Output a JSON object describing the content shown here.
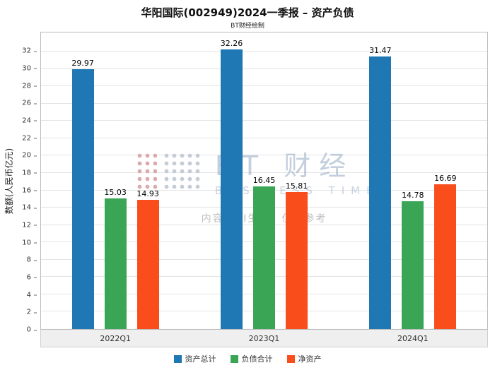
{
  "watermark": {
    "logo_text": "BT 财经",
    "logo_sub": "BUSINESS TIMES",
    "note": "内容由AI生成，仅供参考"
  },
  "chart_data": {
    "type": "bar",
    "title": "华阳国际(002949)2024一季报 – 资产负债",
    "subtitle": "BT财经绘制",
    "categories": [
      "2022Q1",
      "2023Q1",
      "2024Q1"
    ],
    "series": [
      {
        "name": "资产总计",
        "color": "#1f77b4",
        "values": [
          29.97,
          32.26,
          31.47
        ]
      },
      {
        "name": "负债合计",
        "color": "#3aa655",
        "values": [
          15.03,
          16.45,
          14.78
        ]
      },
      {
        "name": "净资产",
        "color": "#f94d1c",
        "values": [
          14.93,
          15.81,
          16.69
        ]
      }
    ],
    "xlabel": "",
    "ylabel": "数额(人民币亿元)",
    "ylim": [
      0,
      34.2
    ],
    "yticks": [
      0,
      2,
      4,
      6,
      8,
      10,
      12,
      14,
      16,
      18,
      20,
      22,
      24,
      26,
      28,
      30,
      32
    ],
    "grid": true,
    "legend_position": "bottom"
  }
}
